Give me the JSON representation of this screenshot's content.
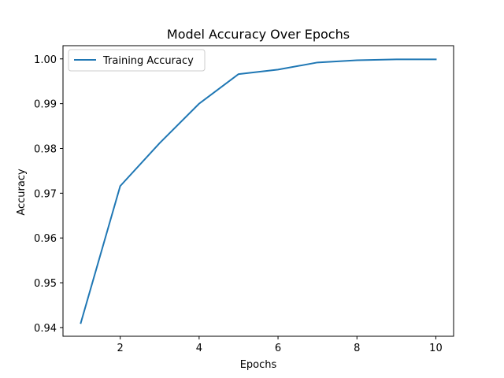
{
  "chart_data": {
    "type": "line",
    "title": "Model Accuracy Over Epochs",
    "xlabel": "Epochs",
    "ylabel": "Accuracy",
    "xlim": [
      0.55,
      10.45
    ],
    "ylim": [
      0.93805,
      1.00295
    ],
    "xticks": [
      2,
      4,
      6,
      8,
      10
    ],
    "yticks": [
      0.94,
      0.95,
      0.96,
      0.97,
      0.98,
      0.99,
      1.0
    ],
    "ytick_labels": [
      "0.94",
      "0.95",
      "0.96",
      "0.97",
      "0.98",
      "0.99",
      "1.00"
    ],
    "grid": false,
    "legend": "upper-left",
    "series": [
      {
        "name": "Training Accuracy",
        "color": "#1f77b4",
        "x": [
          1,
          2,
          3,
          4,
          5,
          6,
          7,
          8,
          9,
          10
        ],
        "values": [
          0.941,
          0.9716,
          0.9812,
          0.99,
          0.9966,
          0.9976,
          0.9992,
          0.9997,
          0.9999,
          0.9999
        ]
      }
    ]
  }
}
